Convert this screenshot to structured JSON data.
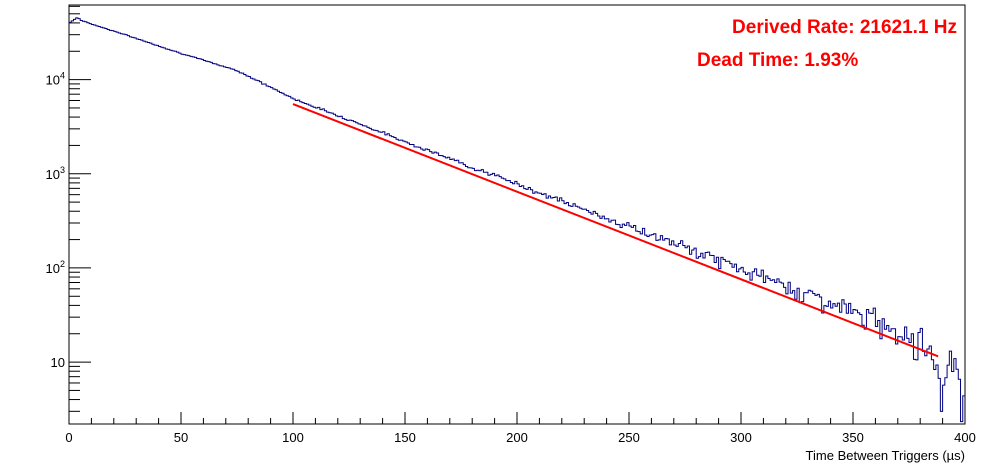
{
  "chart_data": {
    "type": "line",
    "xlabel": "Time Between Triggers (µs)",
    "ylabel": "",
    "xlim": [
      0,
      400
    ],
    "ylim": [
      2.2,
      62000
    ],
    "y_scale": "log",
    "grid": false,
    "x_ticks": [
      0,
      50,
      100,
      150,
      200,
      250,
      300,
      350,
      400
    ],
    "x_tick_labels": [
      "0",
      "50",
      "100",
      "150",
      "200",
      "250",
      "300",
      "350",
      "400"
    ],
    "y_ticks": [
      10,
      100,
      1000,
      10000
    ],
    "y_tick_labels": [
      {
        "base": "10",
        "exp": ""
      },
      {
        "base": "10",
        "exp": "2"
      },
      {
        "base": "10",
        "exp": "3"
      },
      {
        "base": "10",
        "exp": "4"
      }
    ],
    "series": [
      {
        "kind": "histogram",
        "color": "#000080",
        "bin_width": 1,
        "x": [
          0,
          4,
          5,
          10,
          25,
          50,
          75,
          100,
          125,
          150,
          175,
          200,
          225,
          250,
          275,
          300,
          325,
          350,
          375,
          388,
          390,
          392,
          396,
          400
        ],
        "y": [
          40000,
          46000,
          43000,
          39000,
          30000,
          19000,
          12500,
          6300,
          3750,
          2200,
          1300,
          780,
          460,
          275,
          165,
          98,
          58,
          34,
          20,
          11,
          3,
          14,
          8,
          5
        ]
      },
      {
        "kind": "fit",
        "color": "#ff0000",
        "x": [
          100,
          388
        ],
        "y": [
          5500,
          11.5
        ]
      }
    ],
    "annotations": [
      {
        "text": "Derived Rate: 21621.1 Hz",
        "color": "#ff0000"
      },
      {
        "text": "Dead Time: 1.93%",
        "color": "#ff0000"
      }
    ]
  }
}
